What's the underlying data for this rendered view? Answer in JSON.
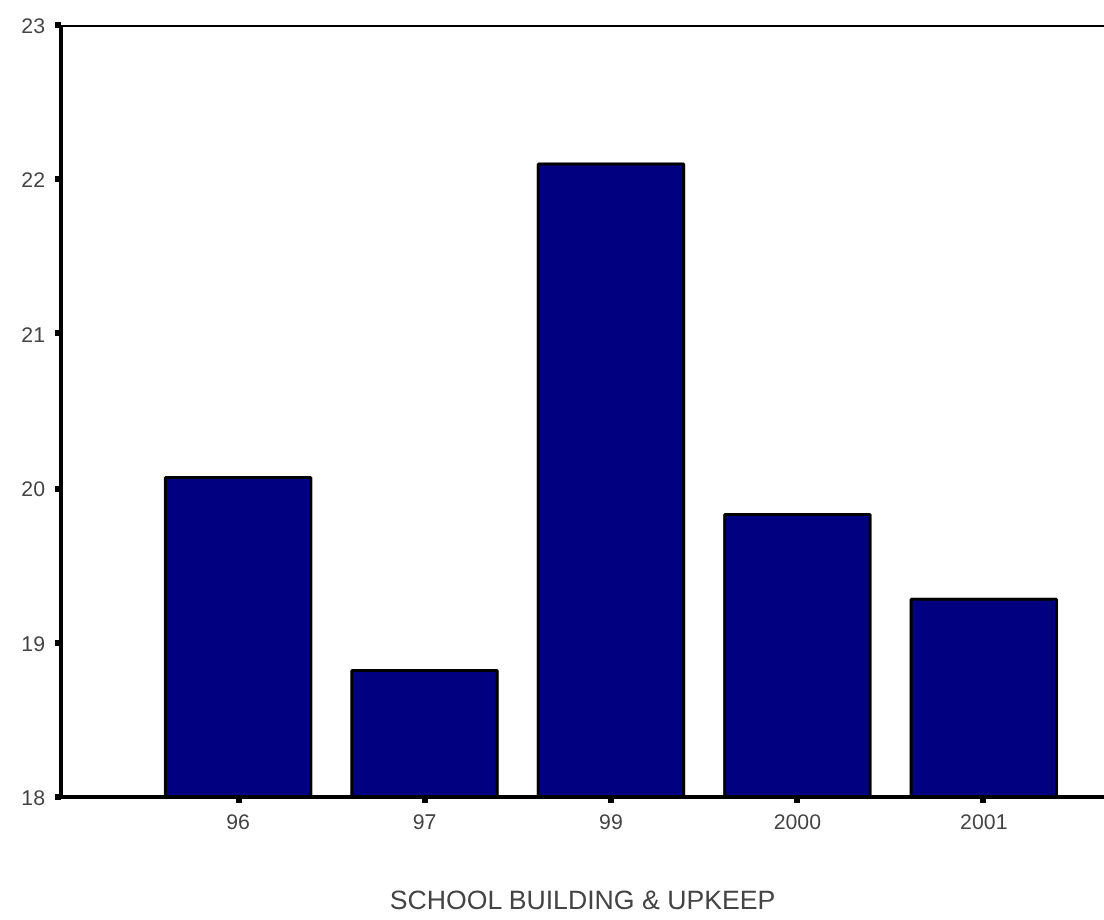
{
  "chart_data": {
    "type": "bar",
    "xlabel": "SCHOOL BUILDING & UPKEEP",
    "categories": [
      "96",
      "97",
      "99",
      "2000",
      "2001"
    ],
    "values": [
      20.07,
      18.82,
      22.1,
      19.83,
      19.28
    ],
    "color": "#000080",
    "ylim": [
      18,
      23
    ],
    "yticks": [
      18,
      19,
      20,
      21,
      22,
      23
    ],
    "grid": false
  }
}
